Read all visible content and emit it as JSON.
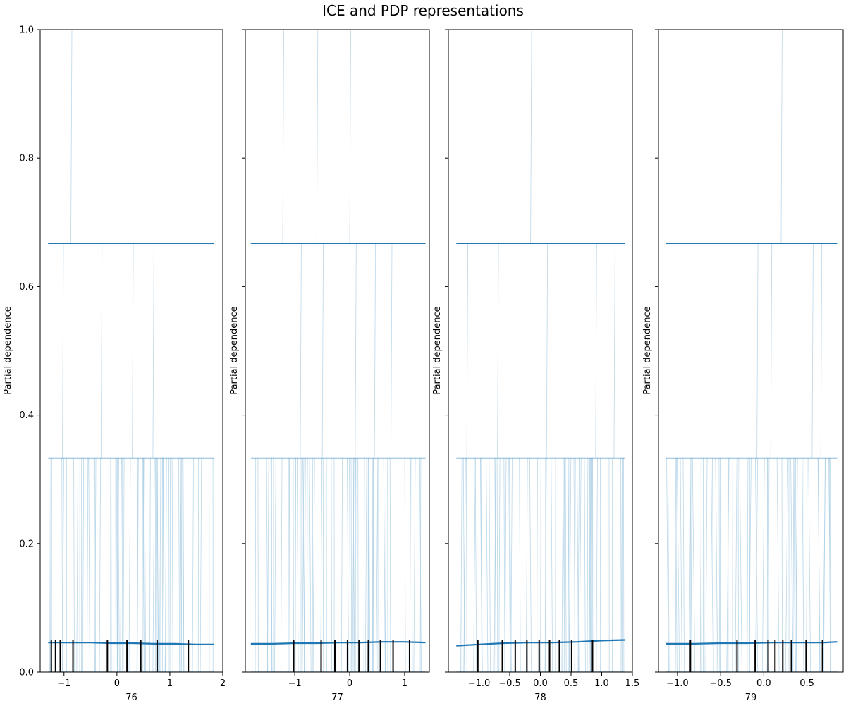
{
  "figure": {
    "title": "ICE and PDP representations"
  },
  "colors": {
    "ice": "#a6cbe3",
    "pdp": "#1f77b4",
    "rug": "#000000",
    "axes": "#000000"
  },
  "chart_data": [
    {
      "type": "line",
      "xlabel": "76",
      "ylabel": "Partial dependence",
      "xlim": [
        -1.45,
        2.0
      ],
      "ylim": [
        0,
        1
      ],
      "xticks": [
        -1,
        0,
        1,
        2
      ],
      "xtick_labels": [
        "−1",
        "0",
        "1",
        "2"
      ],
      "yticks": [
        0.0,
        0.2,
        0.4,
        0.6,
        0.8,
        1.0
      ],
      "ytick_labels": [
        "0.0",
        "0.2",
        "0.4",
        "0.6",
        "0.8",
        "1.0"
      ],
      "x_range": [
        -1.3,
        1.83
      ],
      "pdp": {
        "x": [
          -1.3,
          -0.9,
          -0.5,
          -0.1,
          0.3,
          0.7,
          1.1,
          1.5,
          1.83
        ],
        "y": [
          0.046,
          0.046,
          0.046,
          0.045,
          0.045,
          0.044,
          0.044,
          0.043,
          0.043
        ]
      },
      "ice_levels": [
        0.0,
        0.333,
        0.667
      ],
      "deciles": [
        -1.24,
        -1.16,
        -1.07,
        -0.83,
        -0.18,
        0.19,
        0.45,
        0.76,
        1.35
      ],
      "ice_spikes": [
        {
          "x": -0.87,
          "from": 0.667,
          "to": 1.0
        },
        {
          "x": -1.03,
          "from": 0.333,
          "to": 0.667
        },
        {
          "x": -0.3,
          "from": 0.333,
          "to": 0.667
        },
        {
          "x": 0.29,
          "from": 0.333,
          "to": 0.667
        },
        {
          "x": 0.68,
          "from": 0.333,
          "to": 0.667
        },
        {
          "x": 0.47,
          "from": 0.0,
          "to": 0.333
        }
      ]
    },
    {
      "type": "line",
      "xlabel": "77",
      "ylabel": "Partial dependence",
      "xlim": [
        -1.9,
        1.45
      ],
      "ylim": [
        0,
        1
      ],
      "xticks": [
        -1,
        0,
        1
      ],
      "xtick_labels": [
        "−1",
        "0",
        "1"
      ],
      "yticks": [
        0.0,
        0.2,
        0.4,
        0.6,
        0.8,
        1.0
      ],
      "ytick_labels": [
        "",
        "",
        "",
        "",
        "",
        ""
      ],
      "x_range": [
        -1.8,
        1.38
      ],
      "pdp": {
        "x": [
          -1.8,
          -1.4,
          -1.0,
          -0.6,
          -0.2,
          0.2,
          0.6,
          1.0,
          1.38
        ],
        "y": [
          0.044,
          0.044,
          0.045,
          0.045,
          0.046,
          0.046,
          0.047,
          0.047,
          0.046
        ]
      },
      "ice_levels": [
        0.0,
        0.333,
        0.667
      ],
      "deciles": [
        -1.02,
        -0.52,
        -0.27,
        -0.04,
        0.17,
        0.34,
        0.56,
        0.79,
        1.09
      ],
      "ice_spikes": [
        {
          "x": -1.22,
          "from": 0.667,
          "to": 1.0
        },
        {
          "x": -0.6,
          "from": 0.667,
          "to": 1.0
        },
        {
          "x": 0.0,
          "from": 0.667,
          "to": 1.0
        },
        {
          "x": -0.9,
          "from": 0.333,
          "to": 0.667
        },
        {
          "x": -0.5,
          "from": 0.333,
          "to": 0.667
        },
        {
          "x": 0.1,
          "from": 0.333,
          "to": 0.667
        },
        {
          "x": 0.45,
          "from": 0.333,
          "to": 0.667
        },
        {
          "x": 0.75,
          "from": 0.333,
          "to": 0.667
        }
      ]
    },
    {
      "type": "line",
      "xlabel": "78",
      "ylabel": "Partial dependence",
      "xlim": [
        -1.5,
        1.5
      ],
      "ylim": [
        0,
        1
      ],
      "xticks": [
        -1.0,
        -0.5,
        0.0,
        0.5,
        1.0,
        1.5
      ],
      "xtick_labels": [
        "−1.0",
        "−0.5",
        "0.0",
        "0.5",
        "1.0",
        "1.5"
      ],
      "yticks": [
        0.0,
        0.2,
        0.4,
        0.6,
        0.8,
        1.0
      ],
      "ytick_labels": [
        "",
        "",
        "",
        "",
        "",
        ""
      ],
      "x_range": [
        -1.37,
        1.38
      ],
      "pdp": {
        "x": [
          -1.37,
          -1.0,
          -0.6,
          -0.2,
          0.2,
          0.6,
          1.0,
          1.38
        ],
        "y": [
          0.041,
          0.043,
          0.045,
          0.046,
          0.046,
          0.047,
          0.049,
          0.05
        ]
      },
      "ice_levels": [
        0.0,
        0.333,
        0.667
      ],
      "deciles": [
        -1.02,
        -0.62,
        -0.41,
        -0.22,
        -0.02,
        0.15,
        0.31,
        0.51,
        0.85
      ],
      "ice_spikes": [
        {
          "x": -0.16,
          "from": 0.667,
          "to": 1.0
        },
        {
          "x": -1.2,
          "from": 0.333,
          "to": 0.667
        },
        {
          "x": -0.7,
          "from": 0.333,
          "to": 0.667
        },
        {
          "x": 0.1,
          "from": 0.333,
          "to": 0.667
        },
        {
          "x": 0.9,
          "from": 0.333,
          "to": 0.667
        },
        {
          "x": 1.2,
          "from": 0.333,
          "to": 0.667
        }
      ]
    },
    {
      "type": "line",
      "xlabel": "79",
      "ylabel": "Partial dependence",
      "xlim": [
        -1.22,
        0.92
      ],
      "ylim": [
        0,
        1
      ],
      "xticks": [
        -1.0,
        -0.5,
        0.0,
        0.5
      ],
      "xtick_labels": [
        "−1.0",
        "−0.5",
        "0.0",
        "0.5"
      ],
      "yticks": [
        0.0,
        0.2,
        0.4,
        0.6,
        0.8,
        1.0
      ],
      "ytick_labels": [
        "",
        "",
        "",
        "",
        "",
        ""
      ],
      "x_range": [
        -1.13,
        0.85
      ],
      "pdp": {
        "x": [
          -1.13,
          -0.8,
          -0.5,
          -0.2,
          0.1,
          0.4,
          0.7,
          0.85
        ],
        "y": [
          0.044,
          0.044,
          0.045,
          0.045,
          0.046,
          0.046,
          0.046,
          0.047
        ]
      },
      "ice_levels": [
        0.0,
        0.333,
        0.667
      ],
      "deciles": [
        -0.85,
        -0.31,
        -0.1,
        0.05,
        0.13,
        0.22,
        0.32,
        0.49,
        0.68
      ],
      "ice_spikes": [
        {
          "x": 0.2,
          "from": 0.667,
          "to": 1.0
        },
        {
          "x": -0.08,
          "from": 0.333,
          "to": 0.667
        },
        {
          "x": 0.08,
          "from": 0.333,
          "to": 0.667
        },
        {
          "x": 0.56,
          "from": 0.333,
          "to": 0.667
        },
        {
          "x": 0.66,
          "from": 0.333,
          "to": 0.667
        }
      ]
    }
  ]
}
